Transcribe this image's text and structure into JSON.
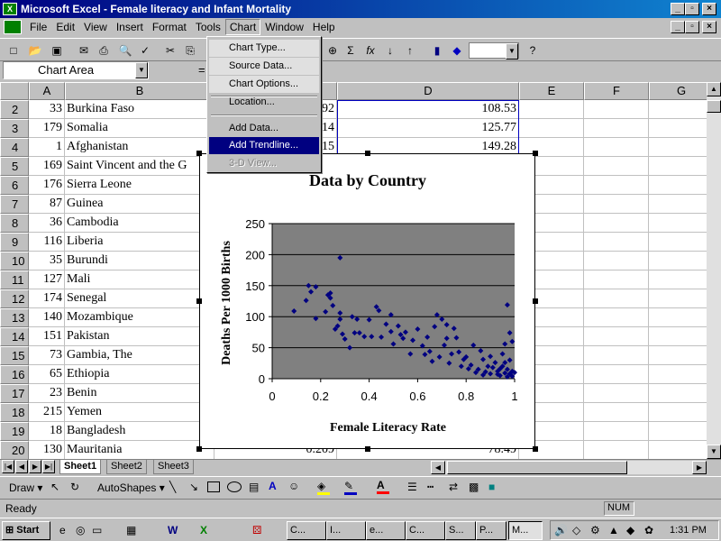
{
  "window": {
    "title": "Microsoft Excel - Female literacy and Infant Mortality"
  },
  "menubar": {
    "items": [
      "File",
      "Edit",
      "View",
      "Insert",
      "Format",
      "Tools",
      "Chart",
      "Window",
      "Help"
    ],
    "active": "Chart"
  },
  "chart_menu": {
    "items": [
      {
        "label": "Chart Type...",
        "state": "normal"
      },
      {
        "label": "Source Data...",
        "state": "normal"
      },
      {
        "label": "Chart Options...",
        "state": "normal"
      },
      {
        "label": "Location...",
        "state": "normal"
      },
      {
        "label": "Add Data...",
        "state": "normal"
      },
      {
        "label": "Add Trendline...",
        "state": "highlighted"
      },
      {
        "label": "3-D View...",
        "state": "disabled"
      }
    ]
  },
  "namebox": {
    "value": "Chart Area"
  },
  "formula_equals": "=",
  "columns": [
    "A",
    "B",
    "C",
    "D",
    "E",
    "F",
    "G"
  ],
  "rows": [
    {
      "row": "2",
      "a": "33",
      "b": "Burkina Faso",
      "c": "92",
      "d": "108.53"
    },
    {
      "row": "3",
      "a": "179",
      "b": "Somalia",
      "c": "14",
      "d": "125.77"
    },
    {
      "row": "4",
      "a": "1",
      "b": "Afghanistan",
      "c": "15",
      "d": "149.28"
    },
    {
      "row": "5",
      "a": "169",
      "b": "Saint Vincent and the G",
      "c": "",
      "d": ""
    },
    {
      "row": "6",
      "a": "176",
      "b": "Sierra Leone",
      "c": "",
      "d": ""
    },
    {
      "row": "7",
      "a": "87",
      "b": "Guinea",
      "c": "",
      "d": ""
    },
    {
      "row": "8",
      "a": "36",
      "b": "Cambodia",
      "c": "",
      "d": ""
    },
    {
      "row": "9",
      "a": "116",
      "b": "Liberia",
      "c": "",
      "d": ""
    },
    {
      "row": "10",
      "a": "35",
      "b": "Burundi",
      "c": "",
      "d": ""
    },
    {
      "row": "11",
      "a": "127",
      "b": "Mali",
      "c": "",
      "d": ""
    },
    {
      "row": "12",
      "a": "174",
      "b": "Senegal",
      "c": "",
      "d": ""
    },
    {
      "row": "13",
      "a": "140",
      "b": "Mozambique",
      "c": "",
      "d": ""
    },
    {
      "row": "14",
      "a": "151",
      "b": "Pakistan",
      "c": "",
      "d": ""
    },
    {
      "row": "15",
      "a": "73",
      "b": "Gambia, The",
      "c": "",
      "d": ""
    },
    {
      "row": "16",
      "a": "65",
      "b": "Ethiopia",
      "c": "",
      "d": ""
    },
    {
      "row": "17",
      "a": "23",
      "b": "Benin",
      "c": "",
      "d": ""
    },
    {
      "row": "18",
      "a": "215",
      "b": "Yemen",
      "c": "",
      "d": ""
    },
    {
      "row": "19",
      "a": "18",
      "b": "Bangladesh",
      "c": "",
      "d": ""
    },
    {
      "row": "20",
      "a": "130",
      "b": "Mauritania",
      "c": "0.209",
      "d": "78.49"
    }
  ],
  "sheets": [
    "Sheet1",
    "Sheet2",
    "Sheet3"
  ],
  "active_sheet": "Sheet1",
  "drawing": {
    "draw_label": "Draw",
    "autoshapes_label": "AutoShapes"
  },
  "status": {
    "text": "Ready",
    "num": "NUM"
  },
  "taskbar": {
    "start": "Start",
    "clock": "1:31 PM",
    "tasks": [
      "C...",
      "I...",
      "e...",
      "C...",
      "S...",
      "P...",
      "M..."
    ]
  },
  "chart_data": {
    "type": "scatter",
    "title": "Data by Country",
    "xlabel": "Female Literacy Rate",
    "ylabel": "Deaths Per 1000 Births",
    "xlim": [
      0,
      1
    ],
    "ylim": [
      0,
      250
    ],
    "xticks": [
      "0",
      "0.2",
      "0.4",
      "0.6",
      "0.8",
      "1"
    ],
    "yticks": [
      "0",
      "50",
      "100",
      "150",
      "200",
      "250"
    ],
    "plot_color": "#808080",
    "marker_color": "#000080",
    "points": [
      [
        0.09,
        109
      ],
      [
        0.14,
        126
      ],
      [
        0.15,
        150
      ],
      [
        0.16,
        140
      ],
      [
        0.18,
        97
      ],
      [
        0.18,
        148
      ],
      [
        0.22,
        108
      ],
      [
        0.23,
        135
      ],
      [
        0.24,
        130
      ],
      [
        0.24,
        138
      ],
      [
        0.25,
        118
      ],
      [
        0.26,
        80
      ],
      [
        0.27,
        85
      ],
      [
        0.28,
        96
      ],
      [
        0.28,
        195
      ],
      [
        0.28,
        106
      ],
      [
        0.29,
        72
      ],
      [
        0.3,
        64
      ],
      [
        0.32,
        50
      ],
      [
        0.33,
        100
      ],
      [
        0.34,
        74
      ],
      [
        0.35,
        96
      ],
      [
        0.36,
        74
      ],
      [
        0.38,
        68
      ],
      [
        0.4,
        95
      ],
      [
        0.41,
        68
      ],
      [
        0.43,
        116
      ],
      [
        0.44,
        110
      ],
      [
        0.45,
        67
      ],
      [
        0.47,
        88
      ],
      [
        0.49,
        76
      ],
      [
        0.49,
        103
      ],
      [
        0.5,
        56
      ],
      [
        0.52,
        85
      ],
      [
        0.53,
        71
      ],
      [
        0.54,
        65
      ],
      [
        0.55,
        75
      ],
      [
        0.57,
        40
      ],
      [
        0.58,
        62
      ],
      [
        0.6,
        80
      ],
      [
        0.62,
        53
      ],
      [
        0.63,
        39
      ],
      [
        0.64,
        67
      ],
      [
        0.65,
        44
      ],
      [
        0.66,
        28
      ],
      [
        0.67,
        84
      ],
      [
        0.68,
        103
      ],
      [
        0.69,
        35
      ],
      [
        0.7,
        96
      ],
      [
        0.71,
        54
      ],
      [
        0.72,
        65
      ],
      [
        0.72,
        87
      ],
      [
        0.73,
        25
      ],
      [
        0.74,
        40
      ],
      [
        0.75,
        81
      ],
      [
        0.76,
        66
      ],
      [
        0.77,
        43
      ],
      [
        0.78,
        20
      ],
      [
        0.79,
        31
      ],
      [
        0.8,
        35
      ],
      [
        0.81,
        16
      ],
      [
        0.82,
        22
      ],
      [
        0.83,
        54
      ],
      [
        0.84,
        10
      ],
      [
        0.85,
        15
      ],
      [
        0.86,
        45
      ],
      [
        0.87,
        31
      ],
      [
        0.87,
        6
      ],
      [
        0.88,
        11
      ],
      [
        0.89,
        20
      ],
      [
        0.9,
        36
      ],
      [
        0.9,
        8
      ],
      [
        0.91,
        18
      ],
      [
        0.92,
        26
      ],
      [
        0.93,
        12
      ],
      [
        0.94,
        5
      ],
      [
        0.95,
        40
      ],
      [
        0.95,
        20
      ],
      [
        0.96,
        9
      ],
      [
        0.96,
        56
      ],
      [
        0.97,
        119
      ],
      [
        0.97,
        15
      ],
      [
        0.98,
        74
      ],
      [
        0.98,
        30
      ],
      [
        0.98,
        8
      ],
      [
        0.99,
        12
      ],
      [
        0.99,
        4
      ],
      [
        0.99,
        60
      ],
      [
        1.0,
        10
      ],
      [
        0.97,
        3
      ],
      [
        0.96,
        26
      ],
      [
        0.94,
        16
      ],
      [
        0.93,
        7
      ]
    ]
  }
}
